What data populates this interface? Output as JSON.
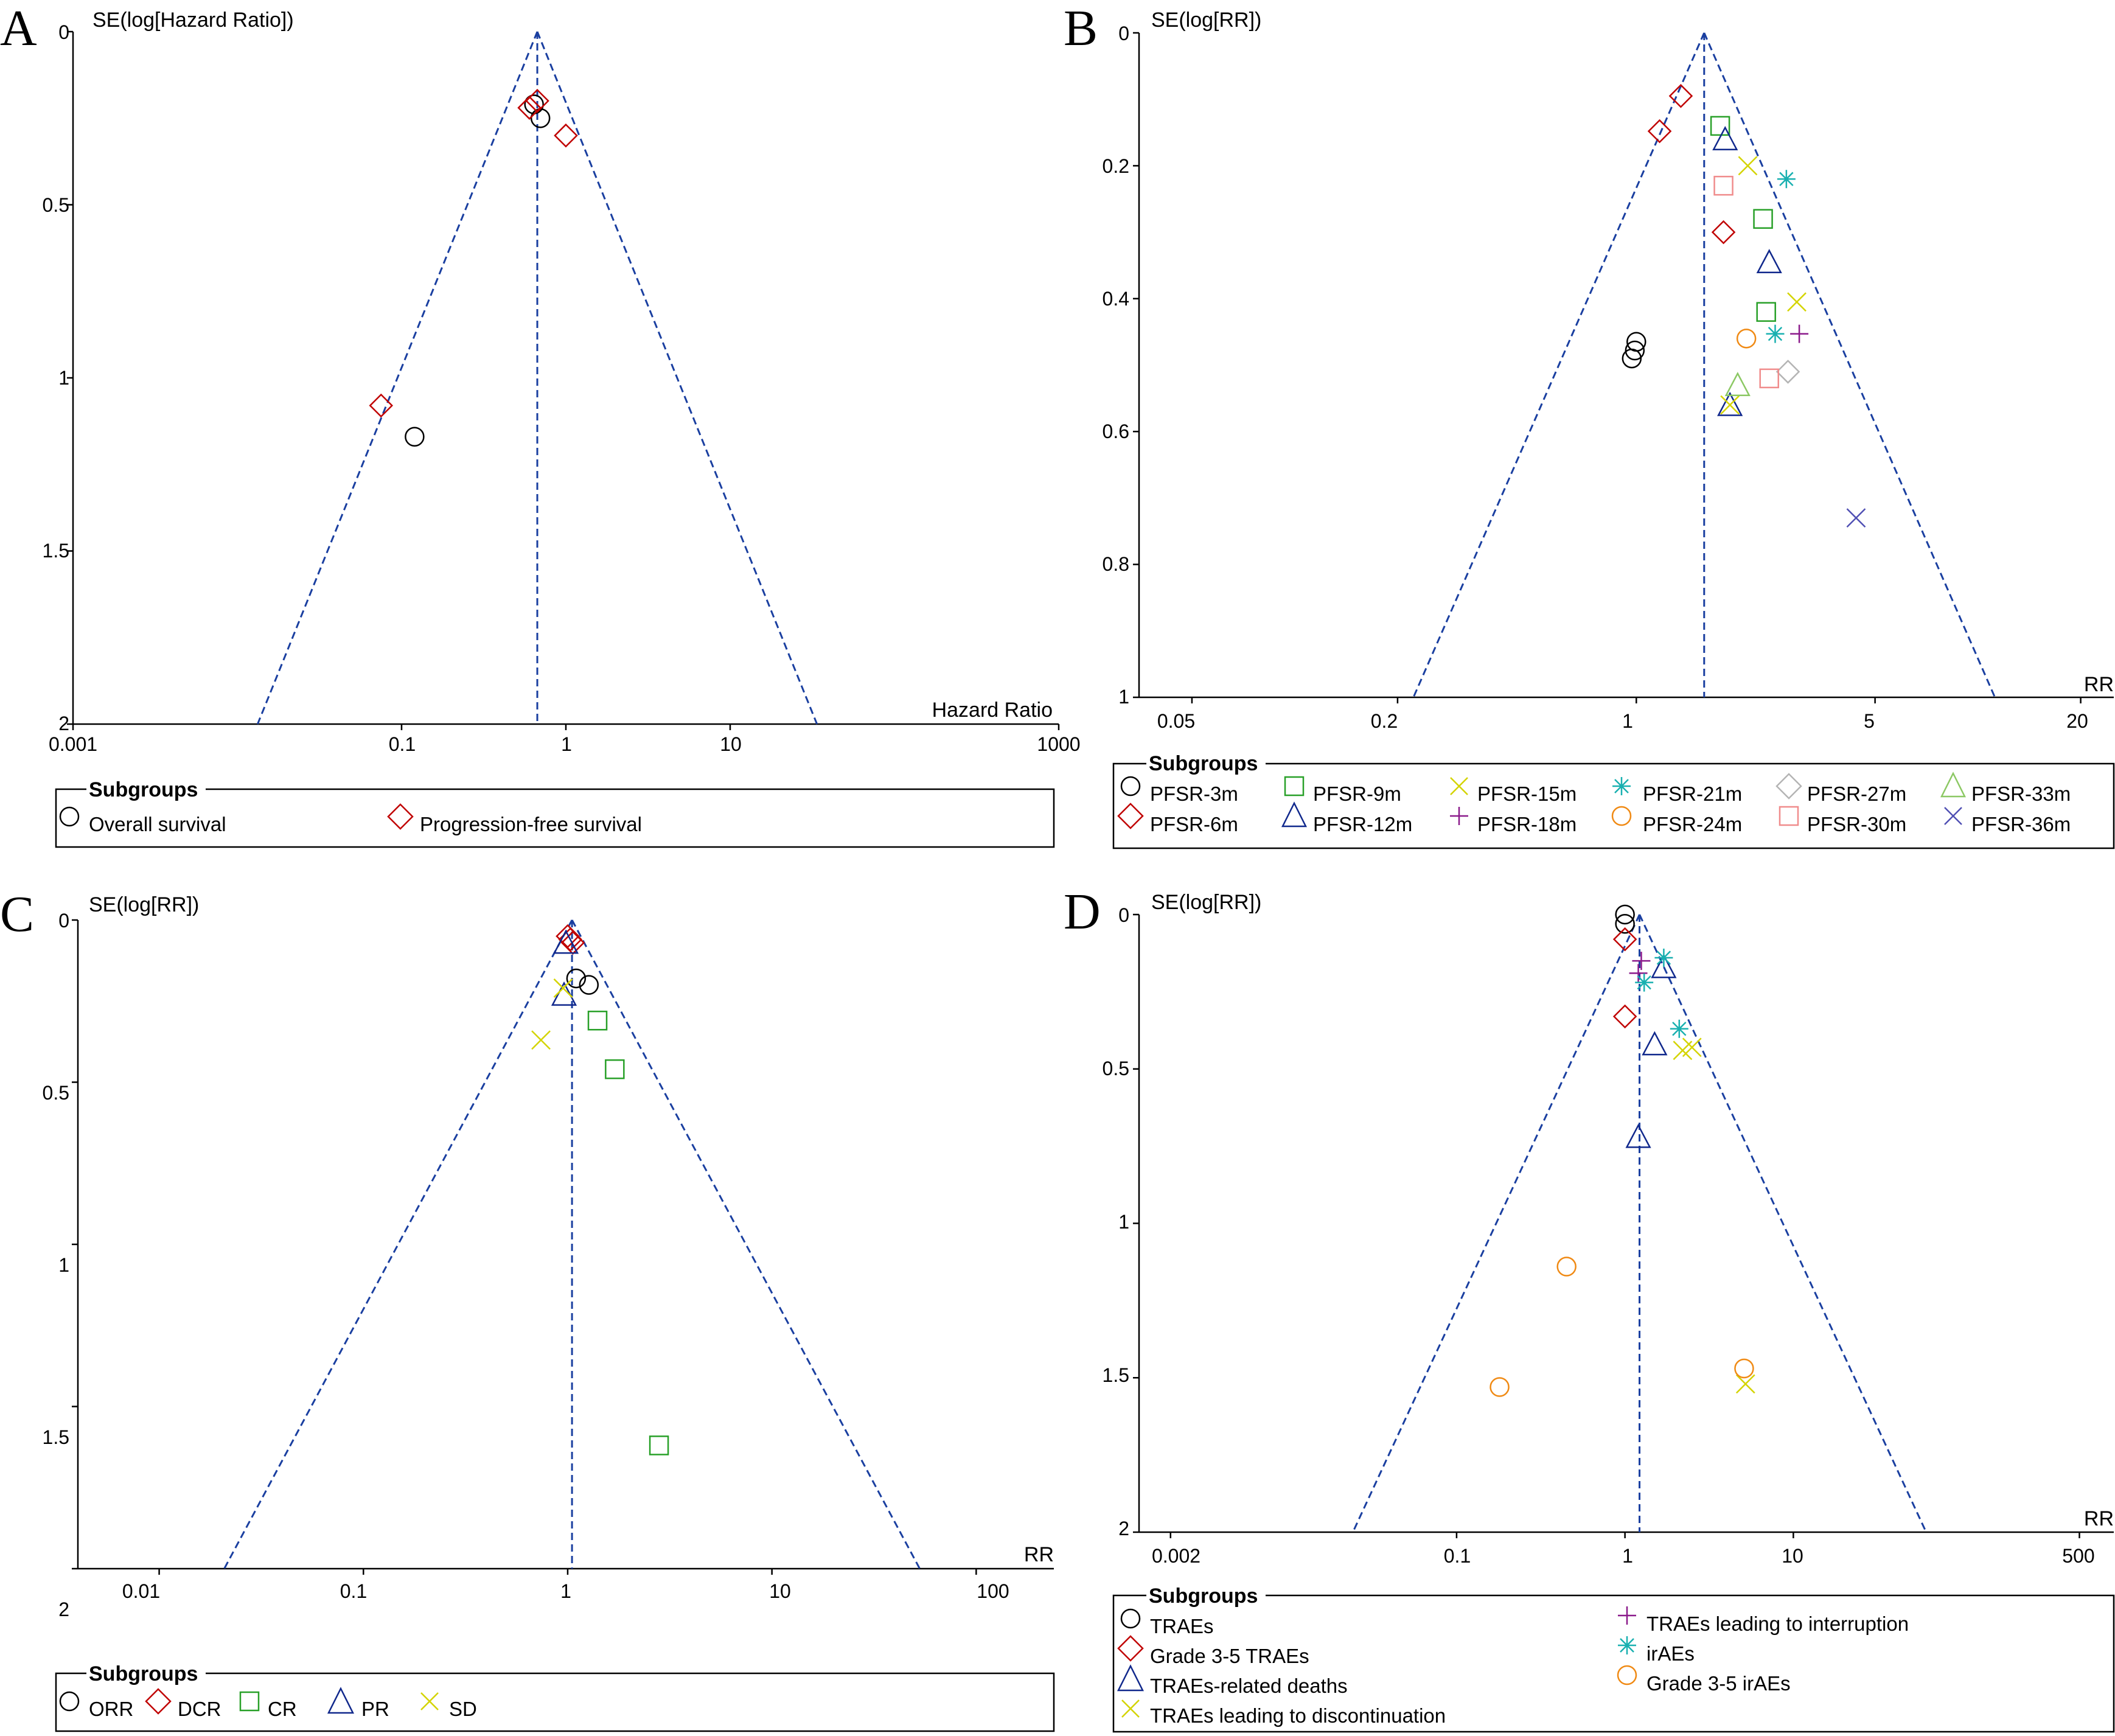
{
  "colors": {
    "ORR": "#000000",
    "DCR": "#c00000",
    "CR": "#28a028",
    "PR": "#10288c",
    "SD": "#d4d400",
    "funnel": "#1a3fa0",
    "PFSR-3m": "#000000",
    "PFSR-6m": "#c00000",
    "PFSR-9m": "#28a028",
    "PFSR-12m": "#10288c",
    "PFSR-15m": "#d4d400",
    "PFSR-18m": "#8b1a8b",
    "PFSR-21m": "#19b0b0",
    "PFSR-24m": "#f08a14",
    "PFSR-27m": "#b4b4b4",
    "PFSR-30m": "#f08c8c",
    "PFSR-33m": "#8cc864",
    "PFSR-36m": "#5050b4"
  },
  "chart_data": [
    {
      "panel_label": "A",
      "type": "scatter",
      "title": "",
      "ylabel": "SE(log[Hazard Ratio])",
      "xlabel": "Hazard Ratio",
      "xscale": "log",
      "xlim": [
        0.001,
        1000
      ],
      "ylim": [
        0,
        2
      ],
      "xticks": [
        0.001,
        0.1,
        1,
        10,
        1000
      ],
      "xtick_labels": [
        "0.001",
        "0.1",
        "1",
        "10",
        "1000"
      ],
      "yticks": [
        0,
        0.5,
        1,
        1.5,
        2
      ],
      "ytick_labels": [
        "0",
        "0.5",
        "1",
        "1.5",
        "2"
      ],
      "pooled_estimate": 0.67,
      "legend_title": "Subgroups",
      "series": [
        {
          "name": "Overall survival",
          "marker": "circle",
          "color": "#000000",
          "x": [
            0.64,
            0.7,
            0.12
          ],
          "y": [
            0.21,
            0.25,
            1.17
          ]
        },
        {
          "name": "Progression-free survival",
          "marker": "diamond",
          "color": "#c00000",
          "x": [
            0.6,
            0.67,
            1.0,
            0.075
          ],
          "y": [
            0.22,
            0.2,
            0.3,
            1.08
          ]
        }
      ]
    },
    {
      "panel_label": "B",
      "type": "scatter",
      "title": "",
      "ylabel": "SE(log[RR])",
      "xlabel": "RR",
      "xscale": "log",
      "xlim": [
        0.035,
        25
      ],
      "ylim": [
        0,
        1
      ],
      "xticks": [
        0.05,
        0.2,
        1,
        5,
        20
      ],
      "xtick_labels": [
        "0.05",
        "0.2",
        "1",
        "5",
        "20"
      ],
      "yticks": [
        0,
        0.2,
        0.4,
        0.6,
        0.8,
        1
      ],
      "ytick_labels": [
        "0",
        "0.2",
        "0.4",
        "0.6",
        "0.8",
        "1"
      ],
      "pooled_estimate": 1.58,
      "legend_title": "Subgroups",
      "series": [
        {
          "name": "PFSR-3m",
          "marker": "circle",
          "color": "#000000",
          "x": [
            1.0,
            0.99,
            0.97
          ],
          "y": [
            0.465,
            0.478,
            0.49
          ]
        },
        {
          "name": "PFSR-6m",
          "marker": "diamond",
          "color": "#c00000",
          "x": [
            1.35,
            1.17,
            1.8
          ],
          "y": [
            0.095,
            0.148,
            0.3
          ]
        },
        {
          "name": "PFSR-9m",
          "marker": "square",
          "color": "#28a028",
          "x": [
            1.76,
            2.35,
            2.4
          ],
          "y": [
            0.14,
            0.28,
            0.42
          ]
        },
        {
          "name": "PFSR-12m",
          "marker": "triangle",
          "color": "#10288c",
          "x": [
            1.82,
            2.45,
            1.88
          ],
          "y": [
            0.16,
            0.345,
            0.56
          ]
        },
        {
          "name": "PFSR-15m",
          "marker": "x",
          "color": "#d4d400",
          "x": [
            2.12,
            2.95,
            1.88
          ],
          "y": [
            0.2,
            0.405,
            0.56
          ]
        },
        {
          "name": "PFSR-18m",
          "marker": "plus",
          "color": "#8b1a8b",
          "x": [
            3.0
          ],
          "y": [
            0.453
          ]
        },
        {
          "name": "PFSR-21m",
          "marker": "asterisk",
          "color": "#19b0b0",
          "x": [
            2.75,
            2.55
          ],
          "y": [
            0.22,
            0.453
          ]
        },
        {
          "name": "PFSR-24m",
          "marker": "circle",
          "color": "#f08a14",
          "x": [
            2.1
          ],
          "y": [
            0.46
          ]
        },
        {
          "name": "PFSR-27m",
          "marker": "diamond",
          "color": "#b4b4b4",
          "x": [
            2.78
          ],
          "y": [
            0.51
          ]
        },
        {
          "name": "PFSR-30m",
          "marker": "square",
          "color": "#f08c8c",
          "x": [
            1.8,
            2.45
          ],
          "y": [
            0.23,
            0.52
          ]
        },
        {
          "name": "PFSR-33m",
          "marker": "triangle",
          "color": "#8cc864",
          "x": [
            1.98
          ],
          "y": [
            0.53
          ]
        },
        {
          "name": "PFSR-36m",
          "marker": "x",
          "color": "#5050b4",
          "x": [
            4.4
          ],
          "y": [
            0.73
          ]
        }
      ]
    },
    {
      "panel_label": "C",
      "type": "scatter",
      "title": "",
      "ylabel": "SE(log[RR])",
      "xlabel": "RR",
      "xscale": "log",
      "xlim": [
        0.004,
        240
      ],
      "ylim": [
        0,
        2
      ],
      "xticks": [
        0.01,
        0.1,
        1,
        10,
        100
      ],
      "xtick_labels": [
        "0.01",
        "0.1",
        "1",
        "10",
        "100"
      ],
      "yticks": [
        0,
        0.5,
        1,
        1.5,
        2
      ],
      "ytick_labels": [
        "0",
        "0.5",
        "1",
        "1.5",
        "2"
      ],
      "pooled_estimate": 1.05,
      "legend_title": "Subgroups",
      "series": [
        {
          "name": "ORR",
          "marker": "circle",
          "color": "#000000",
          "x": [
            1.1,
            1.27
          ],
          "y": [
            0.18,
            0.2
          ]
        },
        {
          "name": "DCR",
          "marker": "diamond",
          "color": "#c00000",
          "x": [
            1.0,
            1.03,
            1.06
          ],
          "y": [
            0.05,
            0.06,
            0.07
          ]
        },
        {
          "name": "CR",
          "marker": "square",
          "color": "#28a028",
          "x": [
            1.4,
            1.7,
            2.8
          ],
          "y": [
            0.31,
            0.46,
            1.62
          ]
        },
        {
          "name": "PR",
          "marker": "triangle",
          "color": "#10288c",
          "x": [
            0.98,
            0.96
          ],
          "y": [
            0.07,
            0.23
          ]
        },
        {
          "name": "SD",
          "marker": "x",
          "color": "#d4d400",
          "x": [
            0.95,
            0.74
          ],
          "y": [
            0.21,
            0.37
          ]
        }
      ]
    },
    {
      "panel_label": "D",
      "type": "scatter",
      "title": "",
      "ylabel": "SE(log[RR])",
      "xlabel": "RR",
      "xscale": "log",
      "xlim": [
        0.0013,
        800
      ],
      "ylim": [
        0,
        2
      ],
      "xticks": [
        0.002,
        0.1,
        1,
        10,
        500
      ],
      "xtick_labels": [
        "0.002",
        "0.1",
        "1",
        "10",
        "500"
      ],
      "yticks": [
        0,
        0.5,
        1,
        1.5,
        2
      ],
      "ytick_labels": [
        "0",
        "0.5",
        "1",
        "1.5",
        "2"
      ],
      "pooled_estimate": 1.22,
      "legend_title": "Subgroups",
      "series": [
        {
          "name": "TRAEs",
          "marker": "circle",
          "color": "#000000",
          "x": [
            1.0,
            1.0
          ],
          "y": [
            0.0,
            0.03
          ]
        },
        {
          "name": "Grade 3-5 TRAEs",
          "marker": "diamond",
          "color": "#c00000",
          "x": [
            1.0,
            1.0
          ],
          "y": [
            0.08,
            0.33
          ]
        },
        {
          "name": "TRAEs-related deaths",
          "marker": "triangle",
          "color": "#10288c",
          "x": [
            1.7,
            1.5,
            1.2
          ],
          "y": [
            0.17,
            0.42,
            0.72
          ]
        },
        {
          "name": "TRAEs leading to discontinuation",
          "marker": "x",
          "color": "#d4d400",
          "x": [
            2.2,
            2.5,
            5.2
          ],
          "y": [
            0.44,
            0.43,
            1.52
          ]
        },
        {
          "name": "TRAEs leading to interruption",
          "marker": "plus",
          "color": "#8b1a8b",
          "x": [
            1.25,
            1.2
          ],
          "y": [
            0.15,
            0.19
          ]
        },
        {
          "name": "irAEs",
          "marker": "asterisk",
          "color": "#19b0b0",
          "x": [
            1.7,
            1.3,
            2.1
          ],
          "y": [
            0.14,
            0.22,
            0.37
          ]
        },
        {
          "name": "Grade 3-5 irAEs",
          "marker": "circle",
          "color": "#f08a14",
          "x": [
            0.45,
            0.18,
            5.1
          ],
          "y": [
            1.14,
            1.53,
            1.47
          ]
        }
      ]
    }
  ]
}
